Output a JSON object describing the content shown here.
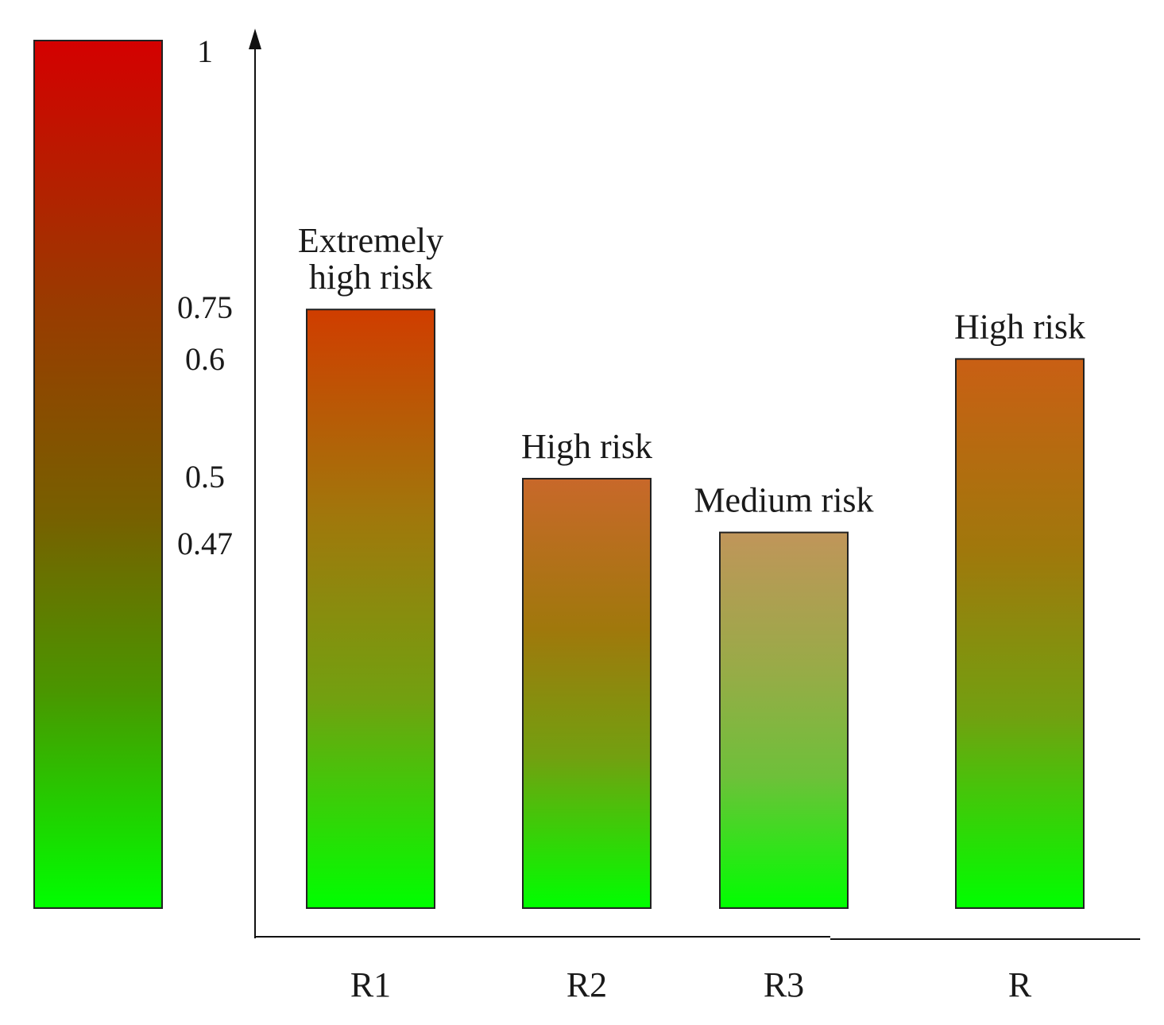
{
  "chart_data": {
    "type": "bar",
    "title": "",
    "xlabel": "",
    "ylabel": "",
    "ylim": [
      0,
      1
    ],
    "legend": {
      "type": "color-scale",
      "placement": "left",
      "low_color": "#00ff00",
      "high_color": "#d40000",
      "ticks": [
        "1",
        "0.75",
        "0.6",
        "0.5",
        "0.47"
      ],
      "tick_values": [
        1,
        0.75,
        0.6,
        0.5,
        0.47
      ]
    },
    "categories": [
      "R1",
      "R2",
      "R3",
      "R"
    ],
    "values": [
      0.69,
      0.495,
      0.433,
      0.633
    ],
    "bar_labels": [
      [
        "Extremely",
        "high risk"
      ],
      [
        "High risk"
      ],
      [
        "Medium risk"
      ],
      [
        "High risk"
      ]
    ],
    "bar_top_colors": [
      "#d03d00",
      "#c8682a",
      "#c0955a",
      "#c95f14"
    ]
  }
}
